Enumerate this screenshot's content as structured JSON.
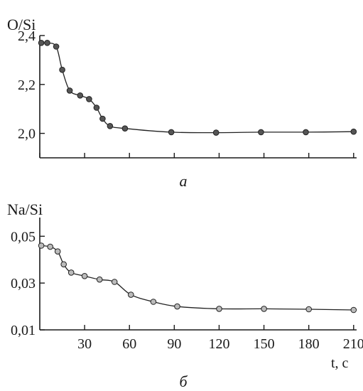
{
  "chart_data": [
    {
      "type": "line",
      "panel_label": "а",
      "ylabel": "O/Si",
      "xlim": [
        0,
        212
      ],
      "ylim": [
        1.9,
        2.4
      ],
      "yticks": [
        2.0,
        2.2,
        2.4
      ],
      "ytick_labels": [
        "2,0",
        "2,2",
        "2,4"
      ],
      "xticks": [
        0,
        30,
        60,
        90,
        120,
        150,
        180,
        210
      ],
      "xtick_labels": [],
      "marker_color": "#555555",
      "line_color": "#222222",
      "x": [
        1,
        5,
        11,
        15,
        20,
        27,
        33,
        38,
        42,
        47,
        57,
        88,
        118,
        148,
        178,
        210
      ],
      "y": [
        2.37,
        2.37,
        2.355,
        2.26,
        2.175,
        2.155,
        2.14,
        2.105,
        2.06,
        2.03,
        2.02,
        2.005,
        2.003,
        2.005,
        2.005,
        2.007
      ]
    },
    {
      "type": "line",
      "panel_label": "б",
      "ylabel": "Na/Si",
      "xlabel": "t, c",
      "xlim": [
        0,
        212
      ],
      "ylim": [
        0.01,
        0.058
      ],
      "yticks": [
        0.01,
        0.03,
        0.05
      ],
      "ytick_labels": [
        "0,01",
        "0,03",
        "0,05"
      ],
      "xticks": [
        30,
        60,
        90,
        120,
        150,
        180,
        210
      ],
      "xtick_labels": [
        "30",
        "60",
        "90",
        "120",
        "150",
        "180",
        "210"
      ],
      "marker_color": "#bbbbbb",
      "line_color": "#222222",
      "x": [
        1,
        7,
        12,
        16,
        21,
        30,
        40,
        50,
        61,
        76,
        92,
        120,
        150,
        180,
        210
      ],
      "y": [
        0.046,
        0.0455,
        0.0435,
        0.038,
        0.0345,
        0.033,
        0.0315,
        0.0305,
        0.025,
        0.022,
        0.02,
        0.019,
        0.019,
        0.0188,
        0.0185
      ]
    }
  ]
}
